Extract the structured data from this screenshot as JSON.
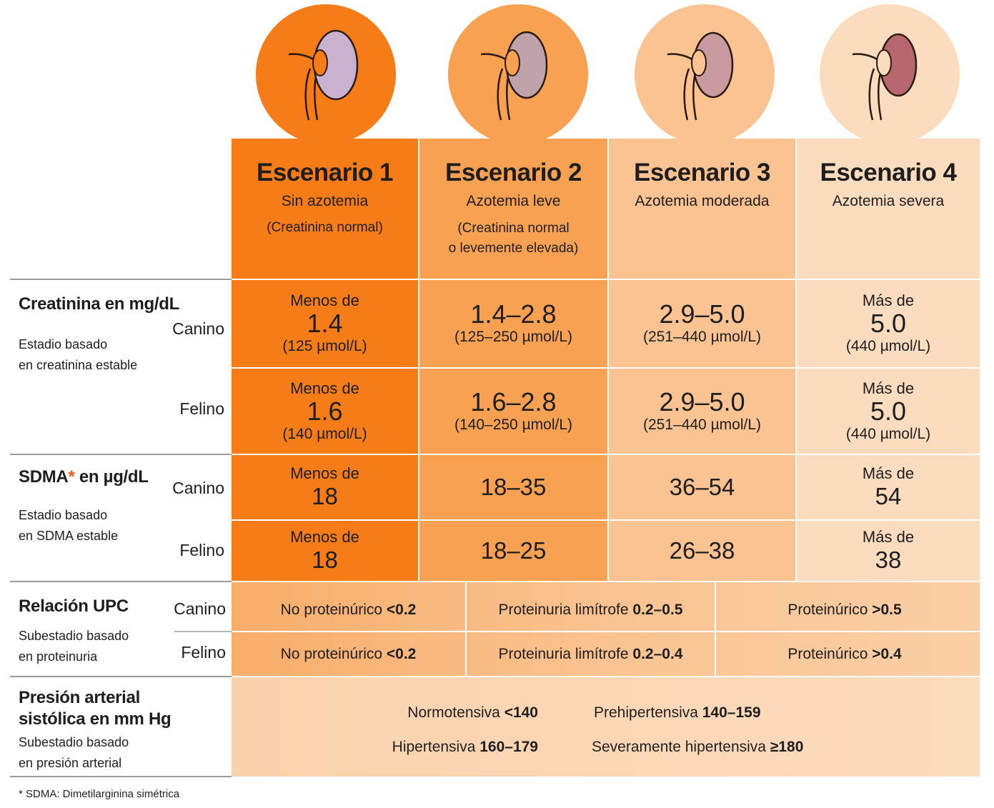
{
  "stages": [
    {
      "title": "Escenario 1",
      "subtitle": "Sin azotemia",
      "note": "(Creatinina normal)"
    },
    {
      "title": "Escenario 2",
      "subtitle": "Azotemia leve",
      "note_line1": "(Creatinina normal",
      "note_line2": "o levemente elevada)"
    },
    {
      "title": "Escenario 3",
      "subtitle": "Azotemia moderada"
    },
    {
      "title": "Escenario 4",
      "subtitle": "Azotemia severa"
    }
  ],
  "colors": {
    "stage1": "#f67c18",
    "stage2": "#f8a152",
    "stage3": "#fac391",
    "stage4": "#fcdcbe",
    "asterisk": "#ef5a12"
  },
  "icons": [
    "kidney-icon",
    "kidney-icon",
    "kidney-icon",
    "kidney-icon"
  ],
  "creatinine": {
    "heading": "Creatinina en mg/dL",
    "sub_line1": "Estadio basado",
    "sub_line2": "en creatinina estable",
    "canine_label": "Canino",
    "feline_label": "Felino",
    "canine": [
      {
        "prefix": "Menos de",
        "value": "1.4",
        "unit": "(125 µmol/L)"
      },
      {
        "value": "1.4–2.8",
        "unit": "(125–250 µmol/L)"
      },
      {
        "value": "2.9–5.0",
        "unit": "(251–440 µmol/L)"
      },
      {
        "prefix": "Más de",
        "value": "5.0",
        "unit": "(440 µmol/L)"
      }
    ],
    "feline": [
      {
        "prefix": "Menos de",
        "value": "1.6",
        "unit": "(140 µmol/L)"
      },
      {
        "value": "1.6–2.8",
        "unit": "(140–250 µmol/L)"
      },
      {
        "value": "2.9–5.0",
        "unit": "(251–440 µmol/L)"
      },
      {
        "prefix": "Más de",
        "value": "5.0",
        "unit": "(440 µmol/L)"
      }
    ]
  },
  "sdma": {
    "heading_part1": "SDMA",
    "asterisk": "*",
    "heading_part2": " en µg/dL",
    "sub_line1": "Estadio basado",
    "sub_line2": "en SDMA estable",
    "canine_label": "Canino",
    "feline_label": "Felino",
    "canine": [
      {
        "prefix": "Menos de",
        "value": "18"
      },
      {
        "value": "18–35"
      },
      {
        "value": "36–54"
      },
      {
        "prefix": "Más de",
        "value": "54"
      }
    ],
    "feline": [
      {
        "prefix": "Menos de",
        "value": "18"
      },
      {
        "value": "18–25"
      },
      {
        "value": "26–38"
      },
      {
        "prefix": "Más de",
        "value": "38"
      }
    ]
  },
  "upc": {
    "heading": "Relación UPC",
    "sub_line1": "Subestadio basado",
    "sub_line2": "en proteinuria",
    "canine_label": "Canino",
    "feline_label": "Felino",
    "canine": [
      {
        "label": "No proteinúrico ",
        "value": "<0.2"
      },
      {
        "label": "Proteinuria limítrofe ",
        "value": "0.2–0.5"
      },
      {
        "label": "Proteinúrico ",
        "value": ">0.5"
      }
    ],
    "feline": [
      {
        "label": "No proteinúrico ",
        "value": "<0.2"
      },
      {
        "label": "Proteinuria limítrofe ",
        "value": "0.2–0.4"
      },
      {
        "label": "Proteinúrico ",
        "value": ">0.4"
      }
    ]
  },
  "bp": {
    "heading_line1": "Presión arterial",
    "heading_line2": "sistólica en mm Hg",
    "sub_line1": "Subestadio basado",
    "sub_line2": "en presión arterial",
    "items": [
      {
        "label": "Normotensiva ",
        "value": "<140"
      },
      {
        "label": "Prehipertensiva ",
        "value": "140–159"
      },
      {
        "label": "Hipertensiva ",
        "value": "160–179"
      },
      {
        "label": "Severamente hipertensiva ",
        "value": "≥180"
      }
    ]
  },
  "footnote": "* SDMA: Dimetilarginina simétrica"
}
